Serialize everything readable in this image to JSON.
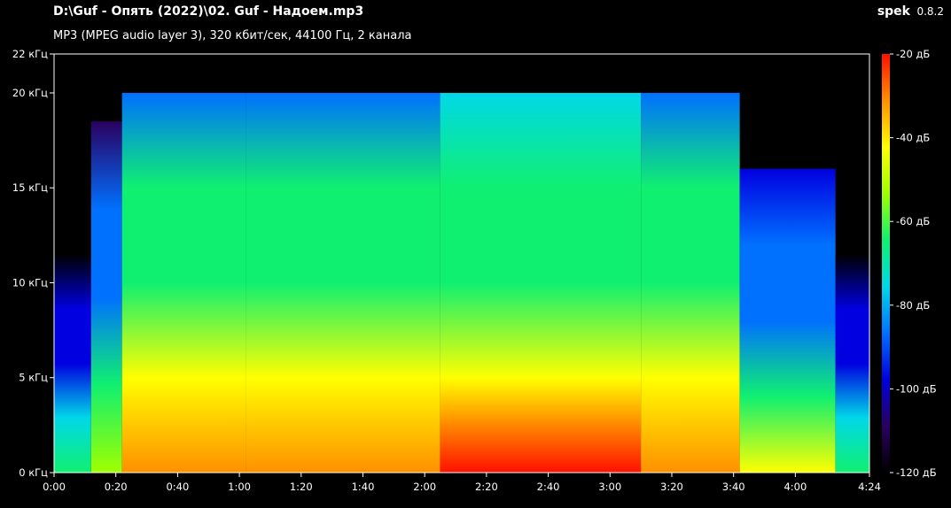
{
  "header": {
    "file_title": "D:\\Guf - Опять (2022)\\02. Guf - Надоем.mp3",
    "file_info": "MP3 (MPEG audio layer 3), 320 кбит/сек, 44100 Гц, 2 канала",
    "app_name": "spek",
    "app_version": "0.8.2"
  },
  "chart_data": {
    "type": "heatmap",
    "title": "",
    "xlabel": "",
    "ylabel": "",
    "x_unit": "seconds",
    "xlim": [
      0,
      264
    ],
    "x_ticks": [
      {
        "value": 0,
        "label": "0:00"
      },
      {
        "value": 20,
        "label": "0:20"
      },
      {
        "value": 40,
        "label": "0:40"
      },
      {
        "value": 60,
        "label": "1:00"
      },
      {
        "value": 80,
        "label": "1:20"
      },
      {
        "value": 100,
        "label": "1:40"
      },
      {
        "value": 120,
        "label": "2:00"
      },
      {
        "value": 140,
        "label": "2:20"
      },
      {
        "value": 160,
        "label": "2:40"
      },
      {
        "value": 180,
        "label": "3:00"
      },
      {
        "value": 200,
        "label": "3:20"
      },
      {
        "value": 220,
        "label": "3:40"
      },
      {
        "value": 240,
        "label": "4:00"
      },
      {
        "value": 264,
        "label": "4:24"
      }
    ],
    "y_unit": "kHz",
    "ylim": [
      0,
      22.05
    ],
    "y_ticks": [
      {
        "value": 0,
        "label": "0 кГц"
      },
      {
        "value": 5,
        "label": "5 кГц"
      },
      {
        "value": 10,
        "label": "10 кГц"
      },
      {
        "value": 15,
        "label": "15 кГц"
      },
      {
        "value": 20,
        "label": "20 кГц"
      },
      {
        "value": 22.05,
        "label": "22 кГц"
      }
    ],
    "colorbar": {
      "unit": "dB",
      "range": [
        -120,
        -20
      ],
      "ticks": [
        {
          "value": -20,
          "label": "-20 дБ"
        },
        {
          "value": -40,
          "label": "-40 дБ"
        },
        {
          "value": -60,
          "label": "-60 дБ"
        },
        {
          "value": -80,
          "label": "-80 дБ"
        },
        {
          "value": -100,
          "label": "-100 дБ"
        },
        {
          "value": -120,
          "label": "-120 дБ"
        }
      ],
      "colors": [
        "#000000",
        "#2a0060",
        "#0000e0",
        "#0070ff",
        "#00d8e8",
        "#10f070",
        "#a0ff00",
        "#ffff00",
        "#ff9000",
        "#ff1000"
      ]
    },
    "segments": [
      {
        "start": 0,
        "end": 12,
        "cutoff_khz": 11.5,
        "level_db": -98
      },
      {
        "start": 12,
        "end": 22,
        "cutoff_khz": 18.5,
        "level_db": -88
      },
      {
        "start": 22,
        "end": 62,
        "cutoff_khz": 20.0,
        "level_db": -66
      },
      {
        "start": 62,
        "end": 125,
        "cutoff_khz": 20.0,
        "level_db": -64
      },
      {
        "start": 125,
        "end": 190,
        "cutoff_khz": 20.0,
        "level_db": -63
      },
      {
        "start": 190,
        "end": 222,
        "cutoff_khz": 20.0,
        "level_db": -66
      },
      {
        "start": 222,
        "end": 253,
        "cutoff_khz": 16.0,
        "level_db": -84
      },
      {
        "start": 253,
        "end": 264,
        "cutoff_khz": 11.5,
        "level_db": -98
      }
    ],
    "grid": false,
    "legend": "right"
  }
}
